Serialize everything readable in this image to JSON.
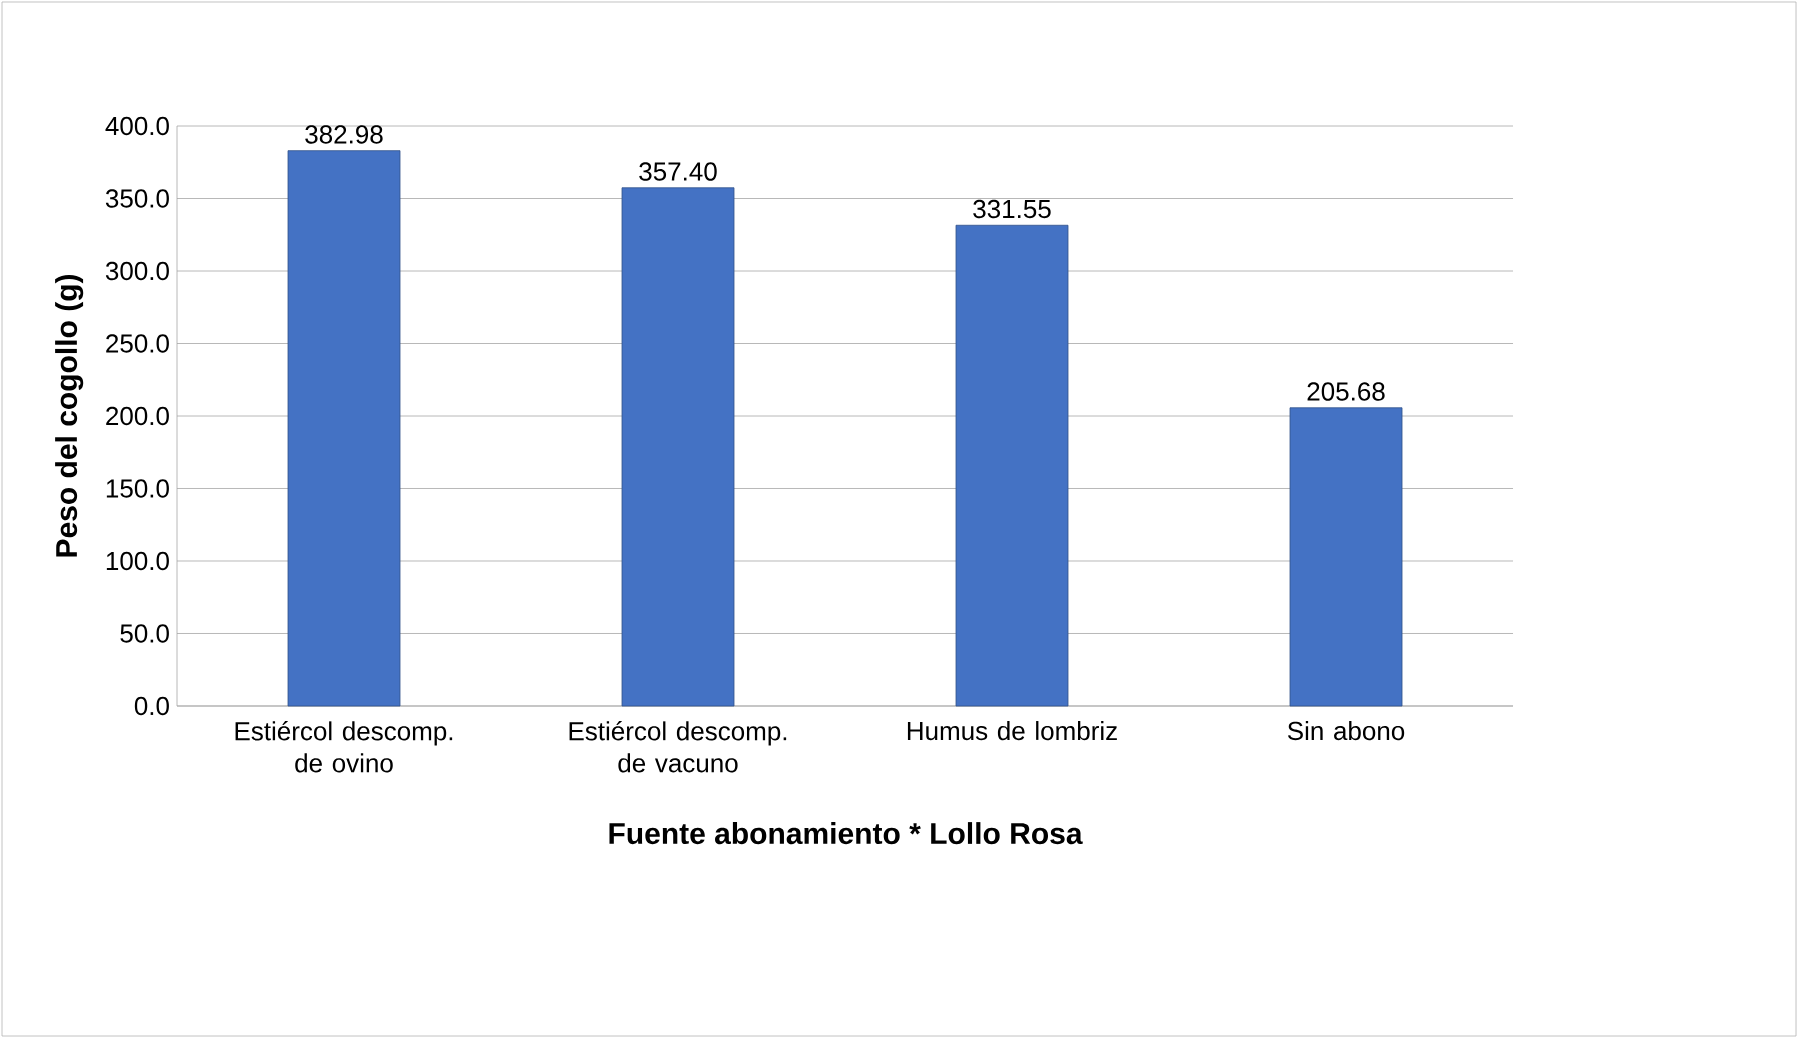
{
  "chart_data": {
    "type": "bar",
    "xlabel": "Fuente abonamiento * Lollo Rosa",
    "ylabel": "Peso del cogollo (g)",
    "categories": [
      "Estiércol descomp. de ovino",
      "Estiércol descomp. de vacuno",
      "Humus de lombriz",
      "Sin abono"
    ],
    "values": [
      382.98,
      357.4,
      331.55,
      205.68
    ],
    "value_labels": [
      "382.98",
      "357.40",
      "331.55",
      "205.68"
    ],
    "color": "#4472c4",
    "ylim": [
      0,
      400
    ],
    "yticks": [
      {
        "value": 0,
        "label": "0.0"
      },
      {
        "value": 50,
        "label": "50.0"
      },
      {
        "value": 100,
        "label": "100.0"
      },
      {
        "value": 150,
        "label": "150.0"
      },
      {
        "value": 200,
        "label": "200.0"
      },
      {
        "value": 250,
        "label": "250.0"
      },
      {
        "value": 300,
        "label": "300.0"
      },
      {
        "value": 350,
        "label": "350.0"
      },
      {
        "value": 400,
        "label": "400.0"
      }
    ],
    "grid": "y"
  }
}
